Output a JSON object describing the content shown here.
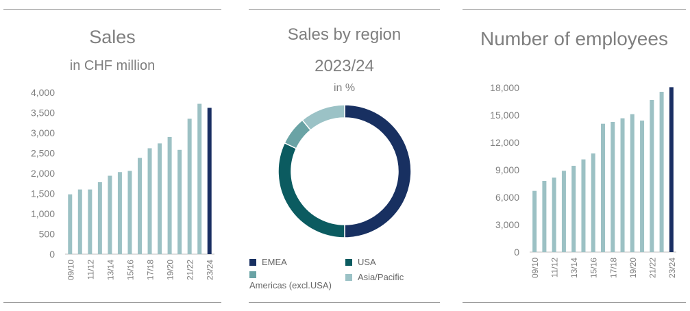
{
  "colors": {
    "bar_light": "#9cc1c4",
    "bar_dark": "#1a2f63",
    "emea": "#183061",
    "usa": "#0b5b60",
    "americas": "#6aa3a5",
    "asia_pacific": "#9bc2c6",
    "text": "#7f7f7f",
    "rule": "#9a9a9a"
  },
  "panels": {
    "sales": {
      "title": "Sales",
      "subtitle": "in CHF million"
    },
    "region": {
      "title": "Sales by region",
      "subtitle": "2023/24",
      "unit": "in %"
    },
    "employees": {
      "title": "Number of employees"
    }
  },
  "legend": [
    {
      "label": "EMEA",
      "color": "#183061"
    },
    {
      "label": "USA",
      "color": "#0b5b60"
    },
    {
      "label": "Americas (excl.USA)",
      "color": "#6aa3a5"
    },
    {
      "label": "Asia/Pacific",
      "color": "#9bc2c6"
    }
  ],
  "chart_data": [
    {
      "type": "bar",
      "title": "Sales",
      "subtitle": "in CHF million",
      "categories": [
        "09/10",
        "10/11",
        "11/12",
        "12/13",
        "13/14",
        "14/15",
        "15/16",
        "16/17",
        "17/18",
        "18/19",
        "19/20",
        "20/21",
        "21/22",
        "22/23",
        "23/24"
      ],
      "tick_labels": [
        "09/10",
        "11/12",
        "13/14",
        "15/16",
        "17/18",
        "19/20",
        "21/22",
        "23/24"
      ],
      "values": [
        1480,
        1600,
        1600,
        1780,
        1940,
        2030,
        2060,
        2380,
        2620,
        2740,
        2900,
        2580,
        3350,
        3720,
        3620
      ],
      "highlight_last": true,
      "ylim": [
        0,
        4000
      ],
      "yticks": [
        0,
        500,
        1000,
        1500,
        2000,
        2500,
        3000,
        3500,
        4000
      ],
      "ytick_labels": [
        "0",
        "500",
        "1,000",
        "1,500",
        "2,000",
        "2,500",
        "3,000",
        "3,500",
        "4,000"
      ]
    },
    {
      "type": "pie",
      "title": "Sales by region",
      "subtitle": "2023/24",
      "unit": "in %",
      "donut": true,
      "labels": [
        "EMEA",
        "USA",
        "Americas (excl.USA)",
        "Asia/Pacific"
      ],
      "values": [
        50,
        32,
        7,
        11
      ]
    },
    {
      "type": "bar",
      "title": "Number of employees",
      "categories": [
        "09/10",
        "10/11",
        "11/12",
        "12/13",
        "13/14",
        "14/15",
        "15/16",
        "16/17",
        "17/18",
        "18/19",
        "19/20",
        "20/21",
        "21/22",
        "22/23",
        "23/24"
      ],
      "tick_labels": [
        "09/10",
        "11/12",
        "13/14",
        "15/16",
        "17/18",
        "19/20",
        "21/22",
        "23/24"
      ],
      "values": [
        6700,
        7800,
        8150,
        8900,
        9450,
        10150,
        10800,
        14050,
        14250,
        14650,
        15100,
        14400,
        16650,
        17550,
        18050
      ],
      "highlight_last": true,
      "ylim": [
        0,
        18000
      ],
      "yticks": [
        0,
        3000,
        6000,
        9000,
        12000,
        15000,
        18000
      ],
      "ytick_labels": [
        "0",
        "3,000",
        "6,000",
        "9,000",
        "12,000",
        "15,000",
        "18,000"
      ]
    }
  ]
}
